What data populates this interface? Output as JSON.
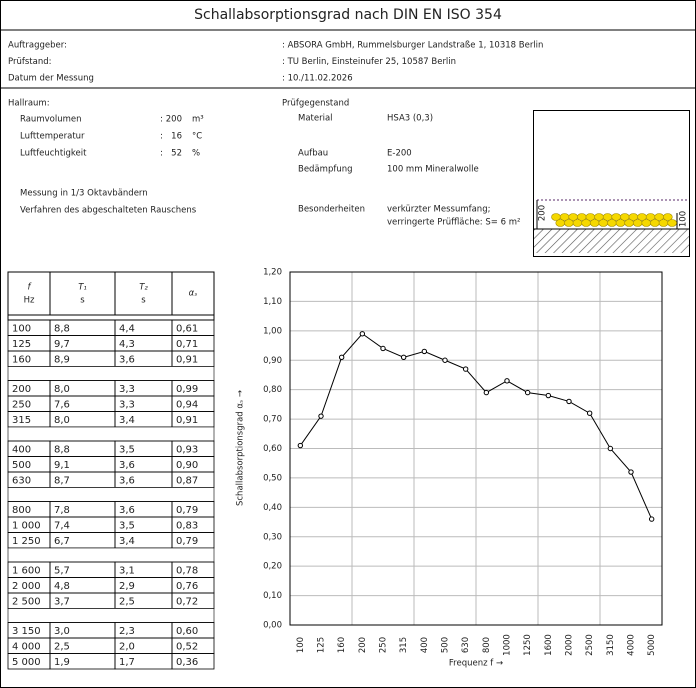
{
  "header": {
    "title": "Schallabsorptionsgrad nach DIN EN ISO 354"
  },
  "info": [
    {
      "label": "Auftraggeber:",
      "value": ": ABSORA GmbH, Rummelsburger Landstraße 1, 10318 Berlin"
    },
    {
      "label": "Prüfstand:",
      "value": ": TU Berlin, Einsteinufer 25, 10587 Berlin"
    },
    {
      "label": "Datum der Messung",
      "value": ": 10./11.02.2026"
    }
  ],
  "hall": {
    "title": "Hallraum:",
    "rows": [
      {
        "label": "Raumvolumen",
        "colon": ":",
        "value": "200",
        "unit": "m³"
      },
      {
        "label": "Lufttemperatur",
        "colon": ":",
        "value": "16",
        "unit": "°C"
      },
      {
        "label": "Luftfeuchtigkeit",
        "colon": ":",
        "value": "52",
        "unit": "%"
      }
    ],
    "notes": [
      "Messung in 1/3 Oktavbändern",
      "Verfahren des abgeschalteten Rauschens"
    ]
  },
  "test_object": {
    "title": "Prüfgegenstand",
    "rows": [
      {
        "label": "Material",
        "lines": [
          "HSA3 (0,3)"
        ]
      },
      {
        "label": "Aufbau",
        "lines": [
          "E-200"
        ]
      },
      {
        "label": "Bedämpfung",
        "lines": [
          "100 mm Mineralwolle"
        ]
      },
      {
        "label": "Besonderheiten",
        "lines": [
          "verkürzter Messumfang;",
          "verringerte Prüffläche: S= 6 m²"
        ]
      }
    ],
    "diagram": {
      "label_left": "200",
      "label_right": "100"
    }
  },
  "table": {
    "headers": [
      {
        "symbol": "f",
        "unit": "Hz"
      },
      {
        "symbol": "T₁",
        "unit": "s"
      },
      {
        "symbol": "T₂",
        "unit": "s"
      },
      {
        "symbol": "αₛ"
      }
    ],
    "groups": [
      [
        [
          "100",
          "8,8",
          "4,4",
          "0,61"
        ],
        [
          "125",
          "9,7",
          "4,3",
          "0,71"
        ],
        [
          "160",
          "8,9",
          "3,6",
          "0,91"
        ]
      ],
      [
        [
          "200",
          "8,0",
          "3,3",
          "0,99"
        ],
        [
          "250",
          "7,6",
          "3,3",
          "0,94"
        ],
        [
          "315",
          "8,0",
          "3,4",
          "0,91"
        ]
      ],
      [
        [
          "400",
          "8,8",
          "3,5",
          "0,93"
        ],
        [
          "500",
          "9,1",
          "3,6",
          "0,90"
        ],
        [
          "630",
          "8,7",
          "3,6",
          "0,87"
        ]
      ],
      [
        [
          "800",
          "7,8",
          "3,6",
          "0,79"
        ],
        [
          "1 000",
          "7,4",
          "3,5",
          "0,83"
        ],
        [
          "1 250",
          "6,7",
          "3,4",
          "0,79"
        ]
      ],
      [
        [
          "1 600",
          "5,7",
          "3,1",
          "0,78"
        ],
        [
          "2 000",
          "4,8",
          "2,9",
          "0,76"
        ],
        [
          "2 500",
          "3,7",
          "2,5",
          "0,72"
        ]
      ],
      [
        [
          "3 150",
          "3,0",
          "2,3",
          "0,60"
        ],
        [
          "4 000",
          "2,5",
          "2,0",
          "0,52"
        ],
        [
          "5 000",
          "1,9",
          "1,7",
          "0,36"
        ]
      ]
    ]
  },
  "chart_data": {
    "type": "line",
    "xlabel": "Frequenz f →",
    "ylabel": "Schallabsorptionsgrad αₛ →",
    "categories": [
      "100",
      "125",
      "160",
      "200",
      "250",
      "315",
      "400",
      "500",
      "630",
      "800",
      "1000",
      "1250",
      "1600",
      "2000",
      "2500",
      "3150",
      "4000",
      "5000"
    ],
    "series": [
      {
        "name": "αₛ",
        "color": "#000000",
        "values": [
          0.61,
          0.71,
          0.91,
          0.99,
          0.94,
          0.91,
          0.93,
          0.9,
          0.87,
          0.79,
          0.83,
          0.79,
          0.78,
          0.76,
          0.72,
          0.6,
          0.52,
          0.36
        ]
      }
    ],
    "ylim": [
      0,
      1.2
    ],
    "yticks": [
      {
        "value": 0,
        "label": "0,00"
      },
      {
        "value": 0.1,
        "label": "0,10"
      },
      {
        "value": 0.2,
        "label": "0,20"
      },
      {
        "value": 0.3,
        "label": "0,30"
      },
      {
        "value": 0.4,
        "label": "0,40"
      },
      {
        "value": 0.5,
        "label": "0,50"
      },
      {
        "value": 0.6,
        "label": "0,60"
      },
      {
        "value": 0.7,
        "label": "0,70"
      },
      {
        "value": 0.8,
        "label": "0,80"
      },
      {
        "value": 0.9,
        "label": "0,90"
      },
      {
        "value": 1.0,
        "label": "1,00"
      },
      {
        "value": 1.1,
        "label": "1,10"
      },
      {
        "value": 1.2,
        "label": "1,20"
      }
    ],
    "grid": true
  }
}
